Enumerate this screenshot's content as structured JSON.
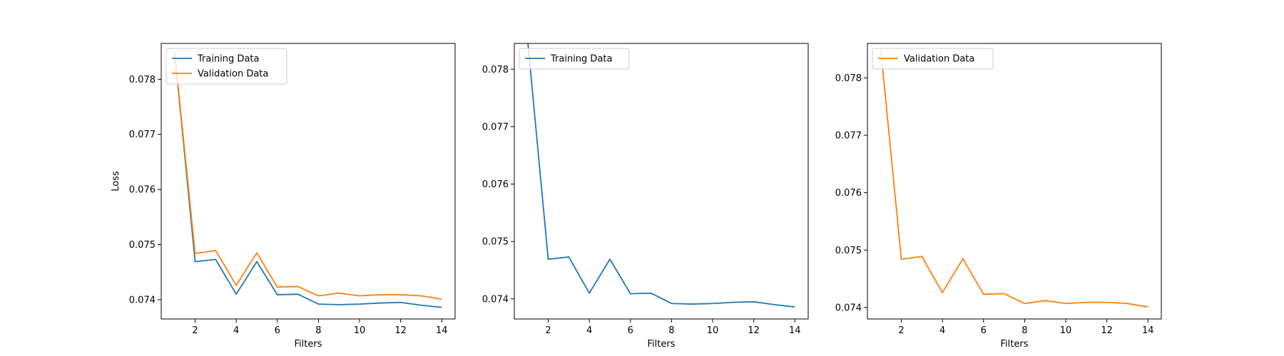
{
  "chart_data": [
    {
      "type": "line",
      "xlabel": "Filters",
      "ylabel": "Loss",
      "xlim": [
        0.35,
        14.65
      ],
      "ylim": [
        0.07365,
        0.07865
      ],
      "xticks": [
        2,
        4,
        6,
        8,
        10,
        12,
        14
      ],
      "yticks": [
        0.074,
        0.075,
        0.076,
        0.077,
        0.078
      ],
      "ytick_labels": [
        "0.074",
        "0.075",
        "0.076",
        "0.077",
        "0.078"
      ],
      "legend_position": "upper-left",
      "x": [
        1,
        2,
        3,
        4,
        5,
        6,
        7,
        8,
        9,
        10,
        11,
        12,
        13,
        14
      ],
      "series": [
        {
          "name": "Training Data",
          "color": "#1f77b4",
          "values": [
            0.0785,
            0.07469,
            0.07473,
            0.0741,
            0.07469,
            0.07409,
            0.0741,
            0.07392,
            0.07391,
            0.07392,
            0.07394,
            0.07395,
            0.0739,
            0.07386
          ]
        },
        {
          "name": "Validation Data",
          "color": "#ff7f0e",
          "values": [
            0.0785,
            0.07484,
            0.07489,
            0.07426,
            0.07485,
            0.07423,
            0.07424,
            0.07407,
            0.07412,
            0.07407,
            0.07409,
            0.07409,
            0.07407,
            0.07401
          ]
        }
      ]
    },
    {
      "type": "line",
      "xlabel": "Filters",
      "ylabel": "",
      "xlim": [
        0.35,
        14.65
      ],
      "ylim": [
        0.07365,
        0.07845
      ],
      "xticks": [
        2,
        4,
        6,
        8,
        10,
        12,
        14
      ],
      "yticks": [
        0.074,
        0.075,
        0.076,
        0.077,
        0.078
      ],
      "ytick_labels": [
        "0.074",
        "0.075",
        "0.076",
        "0.077",
        "0.078"
      ],
      "legend_position": "upper-left",
      "x": [
        1,
        2,
        3,
        4,
        5,
        6,
        7,
        8,
        9,
        10,
        11,
        12,
        13,
        14
      ],
      "series": [
        {
          "name": "Training Data",
          "color": "#1f77b4",
          "values": [
            0.0785,
            0.07469,
            0.07473,
            0.0741,
            0.07469,
            0.07409,
            0.0741,
            0.07392,
            0.07391,
            0.07392,
            0.07394,
            0.07395,
            0.0739,
            0.07386
          ]
        }
      ]
    },
    {
      "type": "line",
      "xlabel": "Filters",
      "ylabel": "",
      "xlim": [
        0.35,
        14.65
      ],
      "ylim": [
        0.0738,
        0.0786
      ],
      "xticks": [
        2,
        4,
        6,
        8,
        10,
        12,
        14
      ],
      "yticks": [
        0.074,
        0.075,
        0.076,
        0.077,
        0.078
      ],
      "ytick_labels": [
        "0.074",
        "0.075",
        "0.076",
        "0.077",
        "0.078"
      ],
      "legend_position": "upper-left",
      "x": [
        1,
        2,
        3,
        4,
        5,
        6,
        7,
        8,
        9,
        10,
        11,
        12,
        13,
        14
      ],
      "series": [
        {
          "name": "Validation Data",
          "color": "#ff7f0e",
          "values": [
            0.0785,
            0.07484,
            0.07489,
            0.07426,
            0.07485,
            0.07423,
            0.07424,
            0.07407,
            0.07412,
            0.07407,
            0.07409,
            0.07409,
            0.07407,
            0.07401
          ]
        }
      ]
    }
  ]
}
